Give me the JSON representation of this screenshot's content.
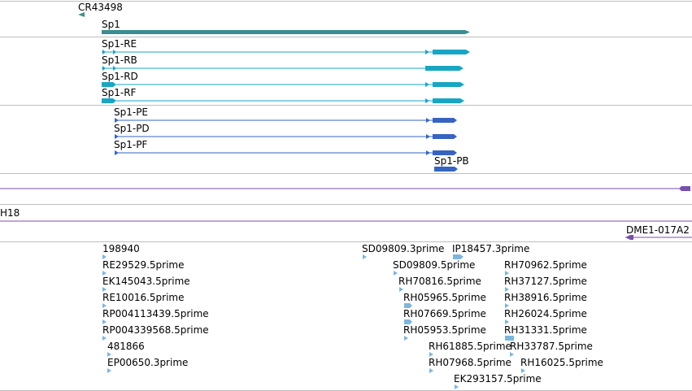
{
  "colors": {
    "gene_teal": "#3a8d90",
    "transcript_cyan": "#17a6c4",
    "cds_blue": "#3565c0",
    "feature_purple": "#7a4fb0",
    "est_lightblue": "#7bb6dd",
    "separator": "#bdbdbd"
  },
  "genes": {
    "cr43498": "CR43498",
    "sp1": "Sp1"
  },
  "transcripts": {
    "re": "Sp1-RE",
    "rb": "Sp1-RB",
    "rd": "Sp1-RD",
    "rf": "Sp1-RF"
  },
  "proteins": {
    "pe": "Sp1-PE",
    "pd": "Sp1-PD",
    "pf": "Sp1-PF",
    "pb": "Sp1-PB"
  },
  "features": {
    "h18": "H18",
    "dme1": "DME1-017A2"
  },
  "ests": [
    "198940",
    "RE29529.5prime",
    "EK145043.5prime",
    "RE10016.5prime",
    "RP004113439.5prime",
    "RP004339568.5prime",
    "481866",
    "EP00650.3prime",
    "SD09809.3prime",
    "IP18457.3prime",
    "SD09809.5prime",
    "RH70962.5prime",
    "RH70816.5prime",
    "RH37127.5prime",
    "RH05965.5prime",
    "RH38916.5prime",
    "RH07669.5prime",
    "RH26024.5prime",
    "RH05953.5prime",
    "RH31331.5prime",
    "RH61885.5prime",
    "RH33787.5prime",
    "RH07968.5prime",
    "RH16025.5prime",
    "EK293157.5prime"
  ]
}
